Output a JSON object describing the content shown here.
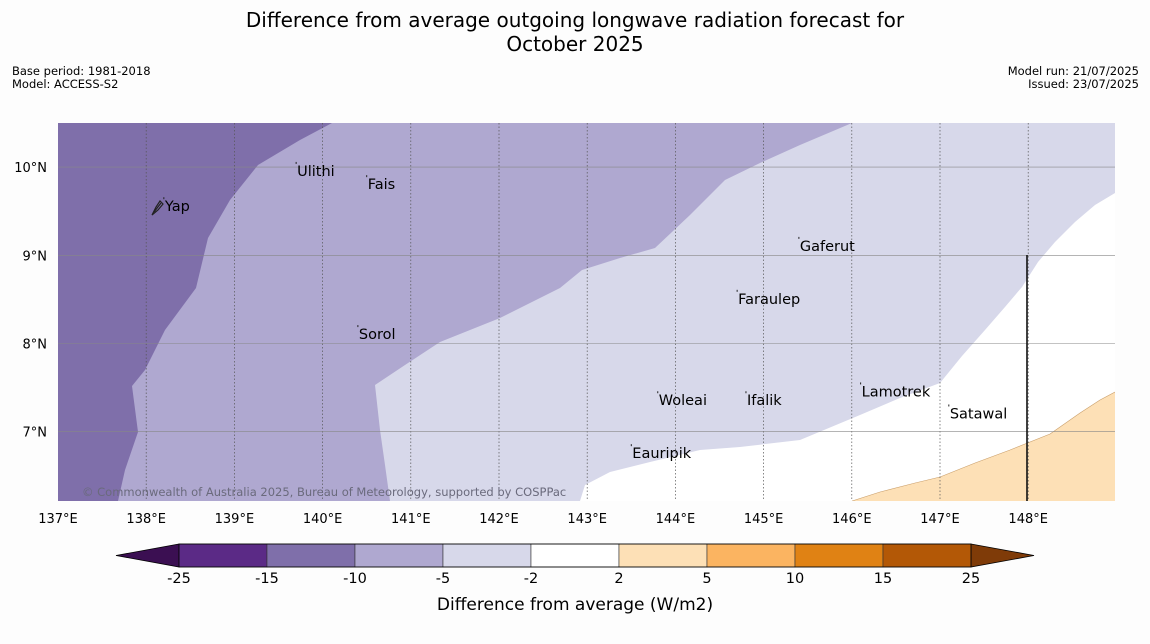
{
  "header": {
    "title_line1": "Difference from average outgoing longwave radiation forecast for",
    "title_line2": "October 2025",
    "base_period": "Base period: 1981-2018",
    "model": "Model: ACCESS-S2",
    "model_run": "Model run: 21/07/2025",
    "issued": "Issued: 23/07/2025"
  },
  "map": {
    "copyright": "© Commonwealth of Australia 2025, Bureau of Meteorology, supported by COSPPac",
    "lon_labels": [
      "137°E",
      "138°E",
      "139°E",
      "140°E",
      "141°E",
      "142°E",
      "143°E",
      "144°E",
      "145°E",
      "146°E",
      "147°E",
      "148°E"
    ],
    "lat_labels": [
      "10°N",
      "9°N",
      "8°N",
      "7°N"
    ],
    "places": [
      {
        "name": "Yap",
        "lon": 138.2,
        "lat": 9.5
      },
      {
        "name": "Ulithi",
        "lon": 139.7,
        "lat": 9.9
      },
      {
        "name": "Fais",
        "lon": 140.5,
        "lat": 9.75
      },
      {
        "name": "Gaferut",
        "lon": 145.4,
        "lat": 9.05
      },
      {
        "name": "Faraulep",
        "lon": 144.7,
        "lat": 8.45
      },
      {
        "name": "Sorol",
        "lon": 140.4,
        "lat": 8.05
      },
      {
        "name": "Lamotrek",
        "lon": 146.1,
        "lat": 7.4
      },
      {
        "name": "Satawal",
        "lon": 147.1,
        "lat": 7.15
      },
      {
        "name": "Woleai",
        "lon": 143.8,
        "lat": 7.3
      },
      {
        "name": "Ifalik",
        "lon": 144.8,
        "lat": 7.3
      },
      {
        "name": "Eauripik",
        "lon": 143.5,
        "lat": 6.7
      }
    ]
  },
  "colorbar": {
    "ticks": [
      "-25",
      "-15",
      "-10",
      "-5",
      "-2",
      "2",
      "5",
      "10",
      "15",
      "25"
    ],
    "label": "Difference from average (W/m2)",
    "colors": {
      "below_min": "#3b0f52",
      "bins": [
        "#5b2a86",
        "#7f6faa",
        "#afa8d0",
        "#d7d8ea",
        "#ffffff",
        "#fde0b6",
        "#fbb461",
        "#e08214",
        "#b35806"
      ],
      "above_max": "#7f3b08"
    }
  },
  "chart_data": {
    "type": "heatmap",
    "xlabel": "",
    "ylabel": "",
    "xlim": [
      137,
      149
    ],
    "ylim": [
      6.2,
      10.5
    ],
    "legend": "bottom",
    "fields": [
      {
        "range": "-15 to -10",
        "color": "#7f6faa",
        "region": "west, 137°E to ~140°E"
      },
      {
        "range": "-10 to -5",
        "color": "#afa8d0",
        "region": "central-west band"
      },
      {
        "range": "-5 to -2",
        "color": "#d7d8ea",
        "region": "central to northeast"
      },
      {
        "range": "-2 to 2",
        "color": "#ffffff",
        "region": "south-east centre"
      },
      {
        "range": "2 to 5",
        "color": "#fde0b6",
        "region": "far south-east corner"
      }
    ]
  }
}
